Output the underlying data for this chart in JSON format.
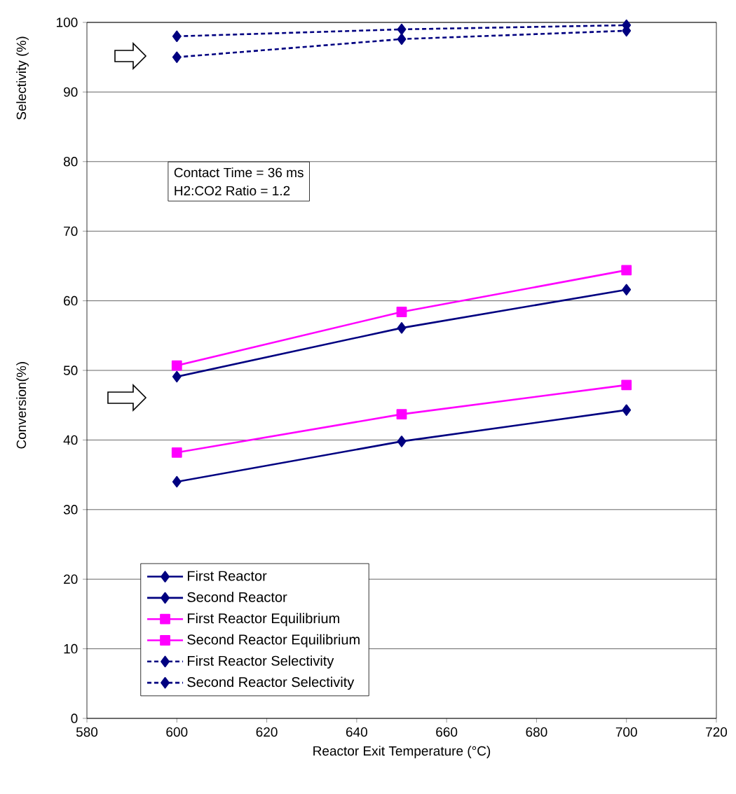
{
  "chart_data": {
    "type": "line",
    "xlabel": "Reactor Exit Temperature (°C)",
    "ylabel": "Conversion(%)",
    "annotations": [
      "Selectivity (%)",
      "Contact Time = 36 ms",
      "H2:CO2 Ratio = 1.2"
    ],
    "x": [
      600,
      650,
      700
    ],
    "series": [
      {
        "name": "First Reactor",
        "color": "#000080",
        "marker": "diamond",
        "line_style": "solid",
        "values": [
          34.0,
          39.8,
          44.3
        ]
      },
      {
        "name": "Second Reactor",
        "color": "#000080",
        "marker": "diamond",
        "line_style": "solid",
        "values": [
          49.1,
          56.1,
          61.6
        ]
      },
      {
        "name": "First Reactor Equilibrium",
        "color": "#ff00ff",
        "marker": "square",
        "line_style": "solid",
        "values": [
          38.2,
          43.7,
          47.9
        ]
      },
      {
        "name": "Second Reactor Equilibrium",
        "color": "#ff00ff",
        "marker": "square",
        "line_style": "solid",
        "values": [
          50.7,
          58.4,
          64.4
        ]
      },
      {
        "name": "First Reactor Selectivity",
        "color": "#000080",
        "marker": "diamond",
        "line_style": "dashed",
        "values": [
          98.0,
          99.0,
          99.6
        ]
      },
      {
        "name": "Second Reactor Selectivity",
        "color": "#000080",
        "marker": "diamond",
        "line_style": "dashed",
        "values": [
          95.0,
          97.6,
          98.8
        ]
      }
    ],
    "xlim": [
      580,
      720
    ],
    "xticks": [
      580,
      600,
      620,
      640,
      660,
      680,
      700,
      720
    ],
    "ylim": [
      0,
      100
    ],
    "yticks": [
      0,
      10,
      20,
      30,
      40,
      50,
      60,
      70,
      80,
      90,
      100
    ],
    "grid": "y",
    "legend": "bottom"
  }
}
